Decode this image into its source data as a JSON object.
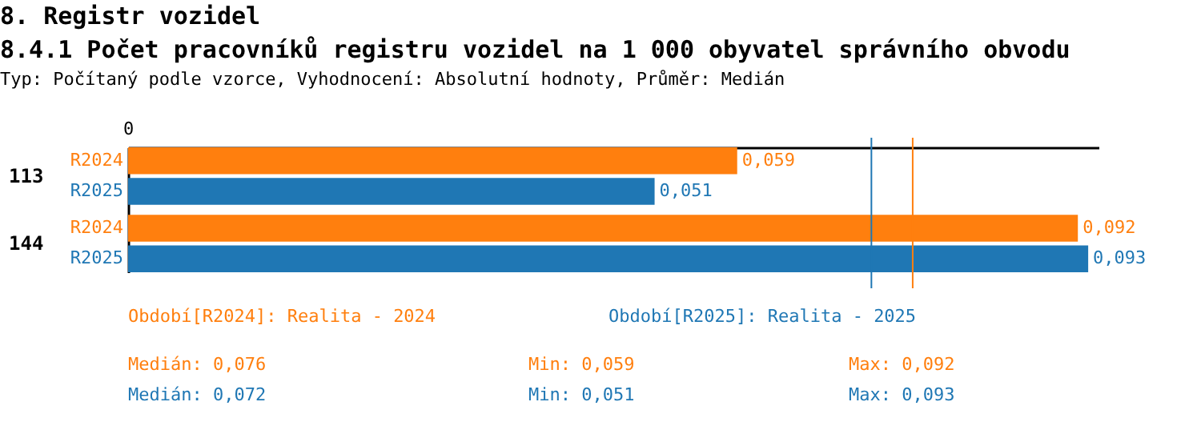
{
  "chart_data": {
    "type": "bar",
    "orientation": "horizontal",
    "title": "8. Registr vozidel",
    "subtitle": "8.4.1 Počet pracovníků registru vozidel na 1 000 obyvatel správního obvodu",
    "categories": [
      "113",
      "144"
    ],
    "series": [
      {
        "name": "R2024",
        "color": "#ff7f0e",
        "values": [
          0.059,
          0.092
        ],
        "value_labels": [
          "0,059",
          "0,092"
        ]
      },
      {
        "name": "R2025",
        "color": "#1f77b4",
        "values": [
          0.051,
          0.093
        ],
        "value_labels": [
          "0,051",
          "0,093"
        ]
      }
    ],
    "xlim": [
      0,
      0.094
    ],
    "ref_lines": [
      {
        "axis": "x",
        "value": 0.072,
        "color": "#1f77b4"
      },
      {
        "axis": "x",
        "value": 0.076,
        "color": "#ff7f0e"
      }
    ],
    "annotations": [
      "Typ: Počítaný podle vzorce, Vyhodnocení: Absolutní hodnoty, Průměr: Medián",
      "Období[R2024]: Realita - 2024",
      "Období[R2025]: Realita - 2025",
      "Medián: 0,076",
      "Min: 0,059",
      "Max: 0,092",
      "Medián: 0,072",
      "Min: 0,051",
      "Max: 0,093",
      "0"
    ]
  }
}
